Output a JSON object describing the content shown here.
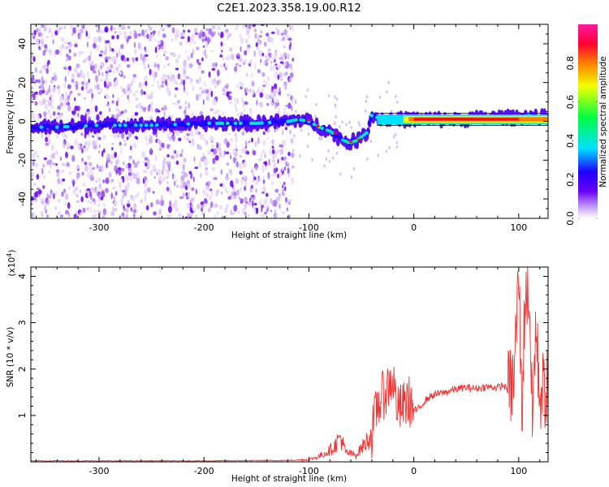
{
  "title": "C2E1.2023.358.19.00.R12",
  "chart_data": [
    {
      "type": "heatmap",
      "title": "C2E1.2023.358.19.00.R12",
      "xlabel": "Height of straight line (km)",
      "ylabel": "Frequency (Hz)",
      "xlim": [
        -365,
        128
      ],
      "ylim": [
        -50,
        50
      ],
      "xticks": [
        -300,
        -200,
        -100,
        0,
        100
      ],
      "yticks": [
        -40,
        -20,
        0,
        20,
        40
      ],
      "trace": {
        "x": [
          -360,
          -340,
          -300,
          -250,
          -200,
          -150,
          -120,
          -110,
          -100,
          -90,
          -80,
          -70,
          -62,
          -55,
          -50,
          -45,
          -40,
          -35,
          -30,
          -20,
          0,
          40,
          80,
          100,
          110,
          120,
          128
        ],
        "y": [
          -3,
          -3,
          -2,
          -2,
          -1,
          -1,
          0,
          1,
          0,
          -3,
          -5,
          -9,
          -11,
          -10,
          -8,
          -6,
          3,
          2,
          1,
          1,
          1,
          1,
          2,
          2,
          3,
          2,
          2
        ]
      },
      "noise_region": [
        -365,
        -115
      ],
      "colorbar": {
        "label": "Normalized spectral amplitude",
        "ticks": [
          "0.0",
          "0.2",
          "0.4",
          "0.6",
          "0.8"
        ],
        "range": [
          0,
          1
        ],
        "colors": [
          "#ffffff",
          "#c39bf5",
          "#6a00f5",
          "#1f00ff",
          "#00e0ff",
          "#00ff44",
          "#f0ff00",
          "#ff8000",
          "#ff0030",
          "#ff1aa0"
        ]
      }
    },
    {
      "type": "line",
      "xlabel": "Height of straight line (km)",
      "ylabel": "SNR (10 * v/v)",
      "scale_label": "(x10",
      "scale_exp": "4",
      "scale_close": ")",
      "xlim": [
        -365,
        128
      ],
      "ylim": [
        0,
        4.2
      ],
      "xticks": [
        -300,
        -200,
        -100,
        0,
        100
      ],
      "yticks": [
        1,
        2,
        3,
        4
      ],
      "color": "#ee3333",
      "series": [
        {
          "x": [
            -365,
            -300,
            -200,
            -120,
            -100,
            -90,
            -80,
            -75,
            -70,
            -65,
            -55,
            -48,
            -40,
            -35,
            -30,
            -25,
            -20,
            -15,
            -10,
            -5,
            0,
            5,
            10,
            15,
            20,
            30,
            40,
            50,
            60,
            70,
            80,
            85,
            90,
            95,
            98,
            100,
            103,
            106,
            110,
            113,
            116,
            120,
            124,
            128
          ],
          "y": [
            0.02,
            0.02,
            0.02,
            0.03,
            0.05,
            0.12,
            0.25,
            0.35,
            0.55,
            0.2,
            0.15,
            0.35,
            0.6,
            1.2,
            1.4,
            1.6,
            1.8,
            1.1,
            1.2,
            1.35,
            1.1,
            1.15,
            1.3,
            1.4,
            1.45,
            1.5,
            1.57,
            1.6,
            1.58,
            1.62,
            1.6,
            1.65,
            1.55,
            1.7,
            3.0,
            4.1,
            1.0,
            3.6,
            3.7,
            0.8,
            2.9,
            1.5,
            1.55,
            1.55
          ]
        }
      ]
    }
  ]
}
